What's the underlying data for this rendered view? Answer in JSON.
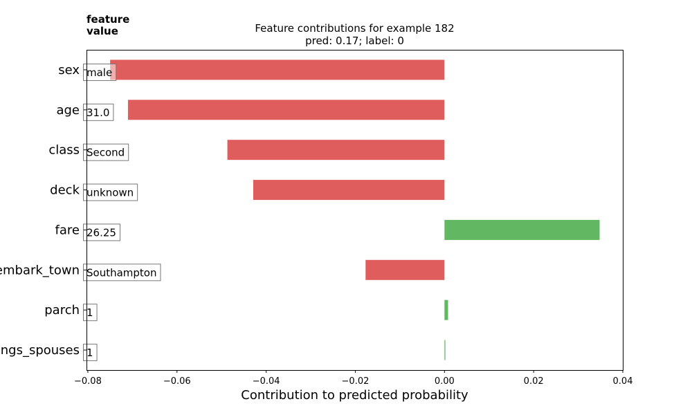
{
  "corner_label": [
    "feature",
    "value"
  ],
  "chart_data": {
    "type": "bar",
    "orientation": "horizontal",
    "title": "Feature contributions for example 182",
    "subtitle": "pred: 0.17; label: 0",
    "xlabel": "Contribution to predicted probability",
    "ylabel": "",
    "xlim": [
      -0.0803,
      0.04
    ],
    "xticks": [
      -0.08,
      -0.06,
      -0.04,
      -0.02,
      0.0,
      0.02,
      0.04
    ],
    "xtick_labels": [
      "−0.08",
      "−0.06",
      "−0.04",
      "−0.02",
      "0.00",
      "0.02",
      "0.04"
    ],
    "categories": [
      "sex",
      "age",
      "class",
      "deck",
      "fare",
      "embark_town",
      "parch",
      "n_siblings_spouses"
    ],
    "feature_values": [
      "male",
      "31.0",
      "Second",
      "unknown",
      "26.25",
      "Southampton",
      "1",
      "1"
    ],
    "values": [
      -0.075,
      -0.071,
      -0.0487,
      -0.0429,
      0.0348,
      -0.0177,
      0.0008,
      0.0002
    ],
    "colors": {
      "negative": "#e05d5d",
      "positive": "#62b862"
    },
    "grid": false,
    "legend": "none"
  }
}
